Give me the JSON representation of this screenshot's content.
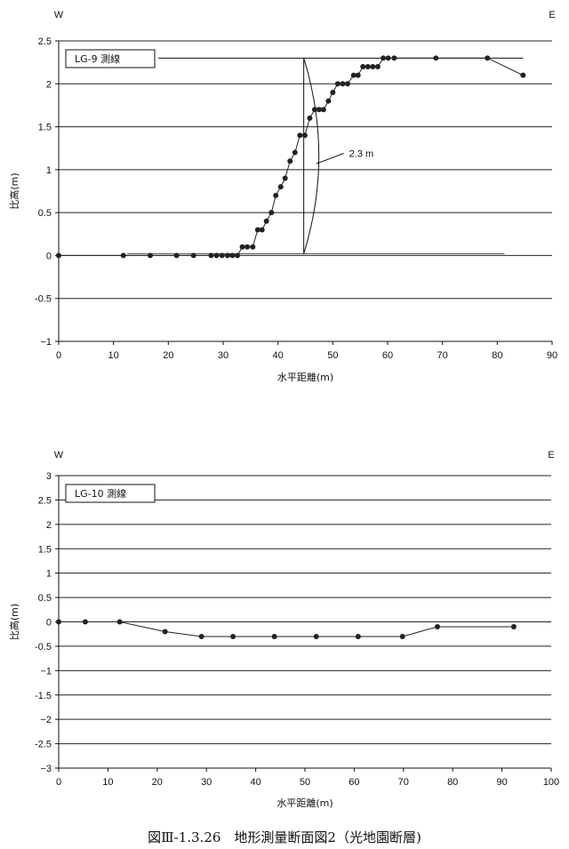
{
  "caption": "図Ⅲ-1.3.26　地形測量断面図2（光地園断層)",
  "chart_data": [
    {
      "type": "line",
      "legend_label": "LG-9  測線",
      "corner_left": "W",
      "corner_right": "E",
      "xlabel": "水平距離(m)",
      "ylabel": "比高(m)",
      "xlim": [
        0,
        90
      ],
      "ylim": [
        -1,
        2.5
      ],
      "x_ticks": [
        0,
        10,
        20,
        30,
        40,
        50,
        60,
        70,
        80,
        90
      ],
      "y_ticks": [
        -1,
        -0.5,
        0,
        0.5,
        1,
        1.5,
        2,
        2.5
      ],
      "y_tick_labels": [
        "−1",
        "-0.5",
        "0",
        "0.5",
        "1",
        "1.5",
        "2",
        "2.5"
      ],
      "grid": "horizontal",
      "series": [
        {
          "x": [
            0,
            11.8,
            16.7,
            21.5,
            24.6,
            27.8,
            28.8,
            29.8,
            30.8,
            31.7,
            32.6,
            33.5,
            34.4,
            35.4,
            36.3,
            37.1,
            37.9,
            38.8,
            39.6,
            40.5,
            41.3,
            42.2,
            43.1,
            44.0,
            44.9,
            45.8,
            46.7,
            47.5,
            48.3,
            49.2,
            50.0,
            50.9,
            51.8,
            52.7,
            53.8,
            54.6,
            55.5,
            56.4,
            57.3,
            58.2,
            59.2,
            60.1,
            61.2,
            68.8,
            78.2,
            84.7
          ],
          "y": [
            0,
            0,
            0,
            0,
            0,
            0,
            0,
            0,
            0,
            0,
            0,
            0.1,
            0.1,
            0.1,
            0.3,
            0.3,
            0.4,
            0.5,
            0.7,
            0.8,
            0.9,
            1.1,
            1.2,
            1.4,
            1.4,
            1.6,
            1.7,
            1.7,
            1.7,
            1.8,
            1.9,
            2.0,
            2.0,
            2.0,
            2.1,
            2.1,
            2.2,
            2.2,
            2.2,
            2.2,
            2.3,
            2.3,
            2.3,
            2.3,
            2.3,
            2.1
          ]
        }
      ],
      "annotation": {
        "label": "2.3 m",
        "upper_surface": {
          "x": [
            12.5,
            84.7
          ],
          "y": [
            2.3,
            2.3
          ]
        },
        "lower_surface": {
          "x": [
            12.5,
            81.3
          ],
          "y": [
            0.02,
            0.02
          ]
        },
        "height_line_x": 44.7,
        "leader_from": [
          47.0,
          1.07
        ],
        "leader_to": [
          52.0,
          1.19
        ]
      }
    },
    {
      "type": "line",
      "legend_label": "LG-10  測線",
      "corner_left": "W",
      "corner_right": "E",
      "xlabel": "水平距離(m)",
      "ylabel": "比高(m)",
      "xlim": [
        0,
        100
      ],
      "ylim": [
        -3,
        3
      ],
      "x_ticks": [
        0,
        10,
        20,
        30,
        40,
        50,
        60,
        70,
        80,
        90,
        100
      ],
      "y_ticks": [
        -3,
        -2.5,
        -2,
        -1.5,
        -1,
        -0.5,
        0,
        0.5,
        1,
        1.5,
        2,
        2.5,
        3
      ],
      "y_tick_labels": [
        "−3",
        "-2.5",
        "−2",
        "-1.5",
        "−1",
        "-0.5",
        "0",
        "0.5",
        "1",
        "1.5",
        "2",
        "2.5",
        "3"
      ],
      "grid": "horizontal",
      "series": [
        {
          "x": [
            0,
            5.4,
            12.4,
            21.6,
            29.0,
            35.4,
            43.8,
            52.3,
            60.8,
            69.8,
            76.9,
            92.4
          ],
          "y": [
            0,
            0,
            0,
            -0.2,
            -0.3,
            -0.3,
            -0.3,
            -0.3,
            -0.3,
            -0.3,
            -0.1,
            -0.1
          ]
        }
      ]
    }
  ]
}
